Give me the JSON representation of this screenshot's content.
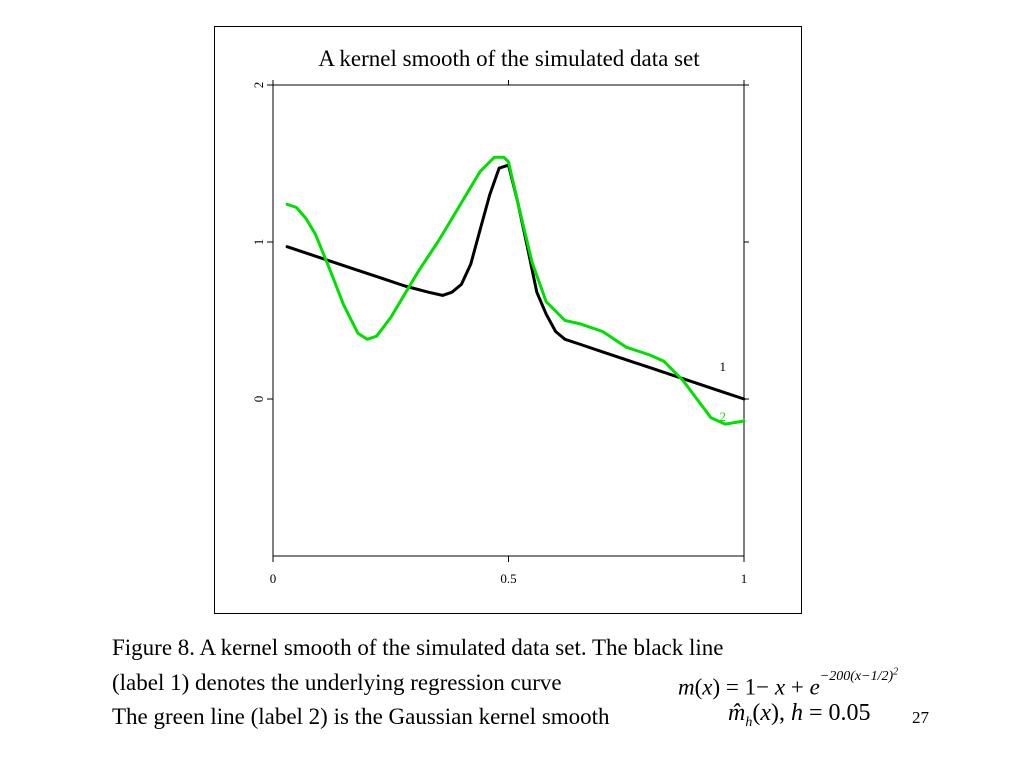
{
  "chart_data": {
    "type": "line",
    "title": "A kernel smooth of the simulated data set",
    "xlabel": "",
    "ylabel": "",
    "xlim": [
      0,
      1
    ],
    "ylim": [
      -1,
      2
    ],
    "x_ticks": [
      0,
      0.5,
      1
    ],
    "x_tick_labels": [
      "0",
      "0.5",
      "1"
    ],
    "y_ticks": [
      0,
      1,
      2
    ],
    "y_tick_labels": [
      "0",
      "1",
      "2"
    ],
    "grid": false,
    "legend": "none",
    "series": [
      {
        "label": "1",
        "color": "#000000",
        "x": [
          0.03,
          0.08,
          0.13,
          0.18,
          0.23,
          0.28,
          0.33,
          0.36,
          0.38,
          0.4,
          0.42,
          0.44,
          0.46,
          0.48,
          0.5,
          0.52,
          0.54,
          0.56,
          0.58,
          0.6,
          0.62,
          0.65,
          0.7,
          0.75,
          0.8,
          0.85,
          0.9,
          0.95,
          1.0
        ],
        "y": [
          0.97,
          0.92,
          0.87,
          0.82,
          0.77,
          0.72,
          0.68,
          0.66,
          0.68,
          0.73,
          0.86,
          1.08,
          1.3,
          1.47,
          1.49,
          1.25,
          0.97,
          0.68,
          0.54,
          0.43,
          0.38,
          0.35,
          0.3,
          0.25,
          0.2,
          0.15,
          0.1,
          0.05,
          0.0
        ]
      },
      {
        "label": "2",
        "color": "#00e000",
        "x": [
          0.03,
          0.05,
          0.07,
          0.09,
          0.12,
          0.15,
          0.18,
          0.2,
          0.22,
          0.25,
          0.28,
          0.31,
          0.35,
          0.38,
          0.41,
          0.44,
          0.47,
          0.49,
          0.5,
          0.52,
          0.55,
          0.58,
          0.62,
          0.65,
          0.7,
          0.75,
          0.8,
          0.83,
          0.87,
          0.9,
          0.93,
          0.96,
          1.0
        ],
        "y": [
          1.24,
          1.22,
          1.15,
          1.05,
          0.83,
          0.6,
          0.42,
          0.38,
          0.4,
          0.52,
          0.67,
          0.82,
          1.0,
          1.15,
          1.3,
          1.45,
          1.54,
          1.54,
          1.51,
          1.25,
          0.87,
          0.62,
          0.5,
          0.48,
          0.43,
          0.33,
          0.28,
          0.24,
          0.12,
          0.0,
          -0.12,
          -0.16,
          -0.14
        ]
      }
    ]
  },
  "caption": {
    "line1": "Figure 8. A kernel smooth of the simulated data set. The black line",
    "line2": "(label 1) denotes the underlying regression curve",
    "line3": "The green line (label 2) is the Gaussian kernel smooth",
    "formula1": {
      "m": "m",
      "open": "(",
      "x": "x",
      "rest": ") = 1− ",
      "x2": "x",
      "plus": " + ",
      "e": "e",
      "exponent": "−200(x−1/2)",
      "exp2": "2"
    },
    "formula2": {
      "m_hat": "m̂",
      "sub": "h",
      "open": "(",
      "x": "x",
      "close": "),",
      "h": "h",
      "equals": " = 0.05"
    }
  },
  "slide_number": "27"
}
